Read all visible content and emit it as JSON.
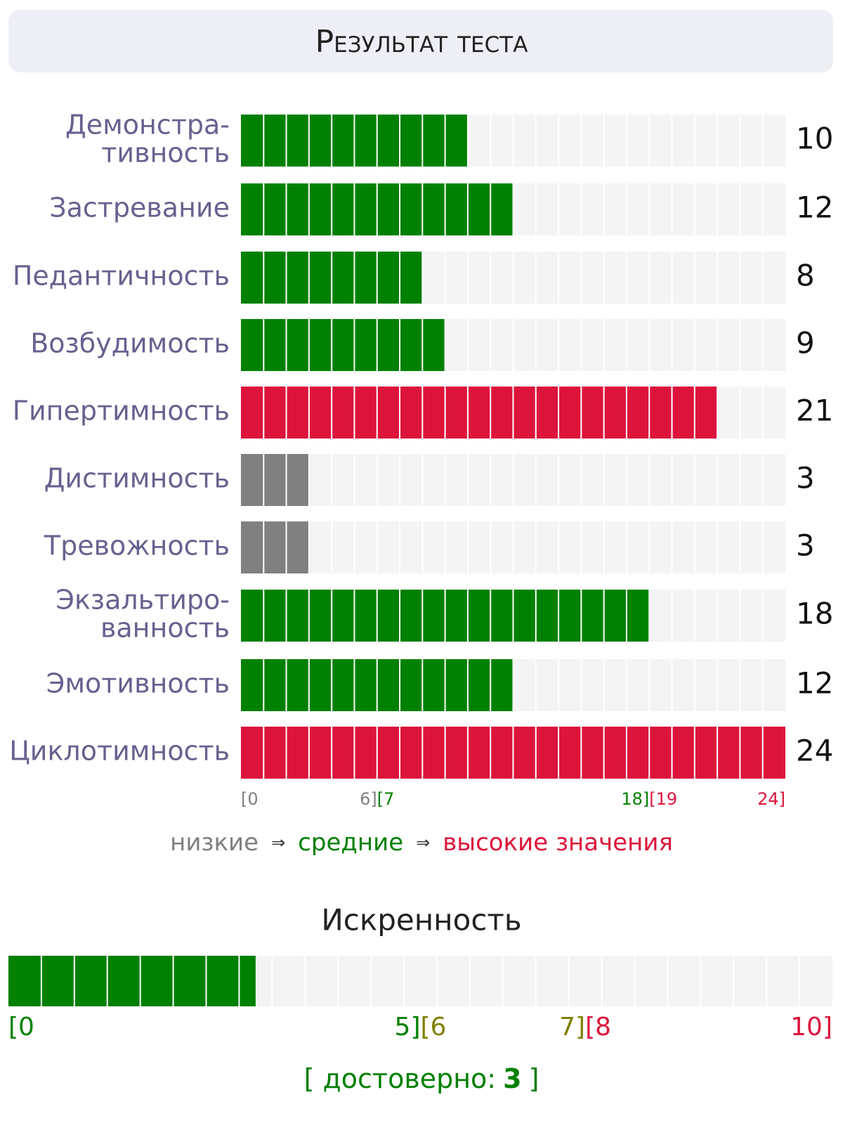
{
  "title": "Результат теста",
  "scales": [
    {
      "label": [
        "Демонстра-",
        "тивность"
      ],
      "value": 10
    },
    {
      "label": [
        "Застревание"
      ],
      "value": 12
    },
    {
      "label": [
        "Педантичность"
      ],
      "value": 8
    },
    {
      "label": [
        "Возбудимость"
      ],
      "value": 9
    },
    {
      "label": [
        "Гипертимность"
      ],
      "value": 21
    },
    {
      "label": [
        "Дистимность"
      ],
      "value": 3
    },
    {
      "label": [
        "Тревожность"
      ],
      "value": 3
    },
    {
      "label": [
        "Экзальтиро-",
        "ванность"
      ],
      "value": 18
    },
    {
      "label": [
        "Эмотивность"
      ],
      "value": 12
    },
    {
      "label": [
        "Циклотимность"
      ],
      "value": 24
    }
  ],
  "xlim": [
    0,
    24
  ],
  "ranges": [
    {
      "start": {
        "value": 0,
        "label": "[0"
      },
      "end": {
        "value": 6,
        "label": "6]"
      },
      "color": "#808080"
    },
    {
      "start": {
        "value": 7,
        "label": "[7"
      },
      "end": {
        "value": 18,
        "label": "18]"
      },
      "color": "#008000"
    },
    {
      "start": {
        "value": 19,
        "label": "[19"
      },
      "end": {
        "value": 24,
        "label": "24]"
      },
      "color": "#dc143c"
    }
  ],
  "legend": [
    {
      "text": "низкие",
      "color": "#808080"
    },
    {
      "text": "⇒",
      "color": "#333333"
    },
    {
      "text": "средние",
      "color": "#008000"
    },
    {
      "text": "⇒",
      "color": "#333333"
    },
    {
      "text": "высокие значения",
      "color": "#dc143c"
    }
  ],
  "sincerity": {
    "title": "Искренность",
    "value": 3,
    "xlim": [
      0,
      10
    ],
    "ranges": [
      {
        "start": {
          "value": 0,
          "label": "[0"
        },
        "end": {
          "value": 5,
          "label": "5]"
        },
        "color": "#008000"
      },
      {
        "start": {
          "value": 6,
          "label": "[6"
        },
        "end": {
          "value": 7,
          "label": "7]"
        },
        "color": "#808000"
      },
      {
        "start": {
          "value": 8,
          "label": "[8"
        },
        "end": {
          "value": 10,
          "label": "10]"
        },
        "color": "#dc143c"
      }
    ],
    "verdict_open": "[ достоверно:",
    "verdict_close": "]"
  }
}
